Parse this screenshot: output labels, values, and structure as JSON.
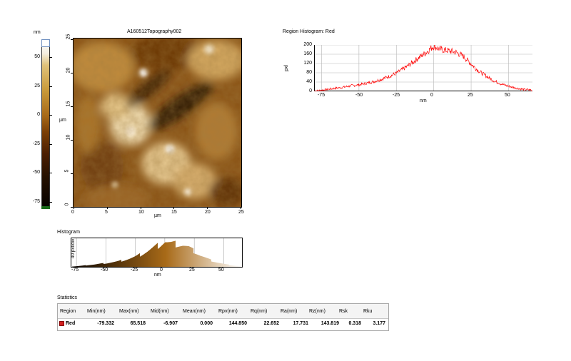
{
  "topography": {
    "title": "A160512Topography002",
    "x_axis": {
      "label": "µm",
      "ticks": [
        "0",
        "5",
        "10",
        "15",
        "20",
        "25"
      ]
    },
    "y_axis": {
      "label": "µm",
      "ticks": [
        "0",
        "5",
        "10",
        "15",
        "20",
        "25"
      ]
    }
  },
  "colorbar": {
    "unit": "nm",
    "ticks": [
      "50",
      "25",
      "0",
      "-25",
      "-50",
      "-75"
    ],
    "colors": {
      "high": "#ffffff",
      "mid": "#a86a18",
      "low": "#050200"
    }
  },
  "histogram": {
    "title": "Histogram",
    "y_label": "40 pxl/div",
    "x_label": "nm",
    "x_ticks": [
      "-75",
      "-50",
      "-25",
      "0",
      "25",
      "50"
    ]
  },
  "region_histogram": {
    "title": "Region Histogram: Red",
    "y_label": "pxl",
    "x_label": "nm",
    "y_ticks": [
      "200",
      "160",
      "120",
      "80",
      "40",
      "0"
    ],
    "x_ticks": [
      "-75",
      "-50",
      "-25",
      "0",
      "25",
      "50"
    ],
    "line_color": "#ff0000"
  },
  "chart_data": {
    "type": "line",
    "title": "Region Histogram: Red",
    "xlabel": "nm",
    "ylabel": "pxl",
    "xlim": [
      -80,
      66
    ],
    "ylim": [
      0,
      200
    ],
    "grid": true,
    "series": [
      {
        "name": "Red",
        "x": [
          -79,
          -75,
          -70,
          -65,
          -60,
          -55,
          -50,
          -45,
          -40,
          -35,
          -30,
          -25,
          -20,
          -15,
          -10,
          -5,
          -2,
          0,
          2,
          5,
          10,
          15,
          20,
          25,
          30,
          35,
          40,
          45,
          50,
          55,
          60,
          65
        ],
        "values": [
          2,
          5,
          9,
          14,
          18,
          24,
          28,
          35,
          42,
          52,
          64,
          78,
          98,
          120,
          145,
          168,
          185,
          195,
          188,
          180,
          175,
          168,
          150,
          118,
          88,
          66,
          46,
          32,
          22,
          14,
          8,
          6
        ]
      }
    ]
  },
  "statistics": {
    "title": "Statistics",
    "headers": [
      "Region",
      "Min(nm)",
      "Max(nm)",
      "Mid(nm)",
      "Mean(nm)",
      "Rpv(nm)",
      "Rq(nm)",
      "Ra(nm)",
      "Rz(nm)",
      "Rsk",
      "Rku"
    ],
    "row": {
      "region": "Red",
      "values": [
        "-79.332",
        "65.518",
        "-6.907",
        "0.000",
        "144.850",
        "22.652",
        "17.731",
        "143.819",
        "0.318",
        "3.177"
      ]
    }
  }
}
